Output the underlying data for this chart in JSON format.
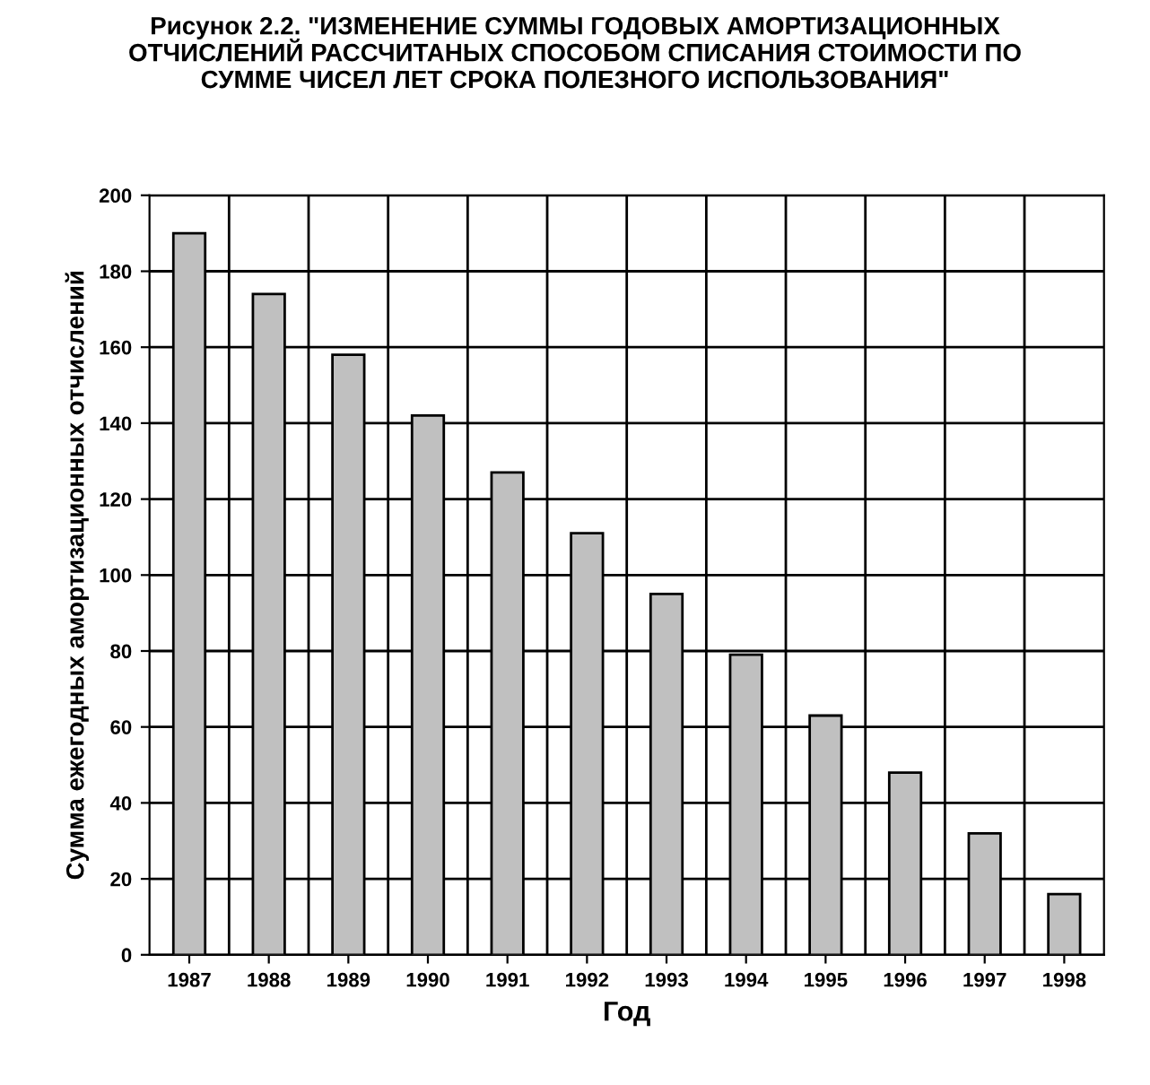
{
  "chart_data": {
    "type": "bar",
    "title": "Рисунок 2.2. \"ИЗМЕНЕНИЕ СУММЫ ГОДОВЫХ АМОРТИЗАЦИОННЫХ\nОТЧИСЛЕНИЙ РАССЧИТАНЫХ СПОСОБОМ СПИСАНИЯ СТОИМОСТИ ПО\nСУММЕ ЧИСЕЛ ЛЕТ СРОКА ПОЛЕЗНОГО ИСПОЛЬЗОВАНИЯ\"",
    "xlabel": "Год",
    "ylabel": "Сумма ежегодных амортизационных отчислений",
    "categories": [
      "1987",
      "1988",
      "1989",
      "1990",
      "1991",
      "1992",
      "1993",
      "1994",
      "1995",
      "1996",
      "1997",
      "1998"
    ],
    "values": [
      190,
      174,
      158,
      142,
      127,
      111,
      95,
      79,
      63,
      48,
      32,
      16
    ],
    "color": "#c0c0c0",
    "ylim": [
      0,
      200
    ],
    "yticks": [
      0,
      20,
      40,
      60,
      80,
      100,
      120,
      140,
      160,
      180,
      200
    ],
    "grid": true
  }
}
